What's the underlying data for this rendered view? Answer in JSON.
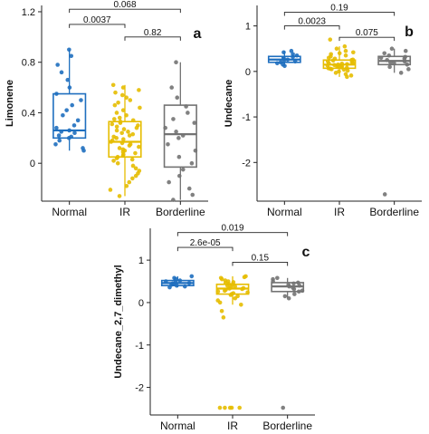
{
  "chart_data": [
    {
      "type": "box",
      "panel": "a",
      "ylabel": "Limonene",
      "categories": [
        "Normal",
        "IR",
        "Borderline"
      ],
      "yticks": [
        0.0,
        0.4,
        0.8,
        1.2
      ],
      "ylim": [
        -0.3,
        1.25
      ],
      "colors": [
        "#1f6fbf",
        "#e6bd00",
        "#737373"
      ],
      "boxes": [
        {
          "name": "Normal",
          "q1": 0.2,
          "median": 0.26,
          "q3": 0.55,
          "whisker_low": 0.1,
          "whisker_high": 0.9
        },
        {
          "name": "IR",
          "q1": 0.05,
          "median": 0.17,
          "q3": 0.33,
          "whisker_low": -0.26,
          "whisker_high": 0.62
        },
        {
          "name": "Borderline",
          "q1": -0.03,
          "median": 0.23,
          "q3": 0.46,
          "whisker_low": -0.29,
          "whisker_high": 0.8
        }
      ],
      "points": [
        [
          0.9,
          0.85,
          0.78,
          0.72,
          0.66,
          0.6,
          0.55,
          0.5,
          0.46,
          0.42,
          0.38,
          0.34,
          0.3,
          0.28,
          0.26,
          0.25,
          0.24,
          0.22,
          0.21,
          0.2,
          0.18,
          0.15,
          0.12,
          0.1
        ],
        [
          0.62,
          0.6,
          0.58,
          0.56,
          0.54,
          0.52,
          0.5,
          0.48,
          0.46,
          0.44,
          0.42,
          0.4,
          0.38,
          0.36,
          0.35,
          0.34,
          0.33,
          0.32,
          0.31,
          0.3,
          0.29,
          0.28,
          0.27,
          0.26,
          0.25,
          0.24,
          0.23,
          0.22,
          0.21,
          0.2,
          0.19,
          0.18,
          0.17,
          0.16,
          0.15,
          0.14,
          0.13,
          0.12,
          0.11,
          0.1,
          0.09,
          0.08,
          0.07,
          0.06,
          0.05,
          0.04,
          0.03,
          0.02,
          0.0,
          -0.02,
          -0.04,
          -0.06,
          -0.08,
          -0.1,
          -0.12,
          -0.15,
          -0.18,
          -0.21,
          -0.26
        ],
        [
          0.8,
          0.6,
          0.52,
          0.45,
          0.4,
          0.35,
          0.32,
          0.28,
          0.25,
          0.22,
          0.2,
          0.15,
          0.1,
          0.05,
          0.0,
          -0.05,
          -0.1,
          -0.15,
          -0.2,
          -0.25,
          -0.29
        ]
      ],
      "comparisons": [
        {
          "from": "Normal",
          "to": "Borderline",
          "p": "0.068",
          "y": 1.22
        },
        {
          "from": "Normal",
          "to": "IR",
          "p": "0.0037",
          "y": 1.1
        },
        {
          "from": "IR",
          "to": "Borderline",
          "p": "0.82",
          "y": 1.0
        }
      ]
    },
    {
      "type": "box",
      "panel": "b",
      "ylabel": "Undecane",
      "categories": [
        "Normal",
        "IR",
        "Borderline"
      ],
      "yticks": [
        -2,
        -1,
        0,
        1
      ],
      "ylim": [
        -2.85,
        1.45
      ],
      "colors": [
        "#1f6fbf",
        "#e6bd00",
        "#737373"
      ],
      "boxes": [
        {
          "name": "Normal",
          "q1": 0.2,
          "median": 0.26,
          "q3": 0.33,
          "whisker_low": 0.12,
          "whisker_high": 0.45
        },
        {
          "name": "IR",
          "q1": 0.07,
          "median": 0.15,
          "q3": 0.25,
          "whisker_low": -0.12,
          "whisker_high": 0.55
        },
        {
          "name": "Borderline",
          "q1": 0.15,
          "median": 0.23,
          "q3": 0.33,
          "whisker_low": -0.03,
          "whisker_high": 0.5
        }
      ],
      "points": [
        [
          0.45,
          0.42,
          0.38,
          0.35,
          0.32,
          0.3,
          0.28,
          0.26,
          0.25,
          0.22,
          0.2,
          0.18,
          0.15,
          0.12
        ],
        [
          0.7,
          0.55,
          0.5,
          0.45,
          0.42,
          0.4,
          0.38,
          0.35,
          0.33,
          0.3,
          0.28,
          0.26,
          0.25,
          0.24,
          0.22,
          0.2,
          0.19,
          0.18,
          0.17,
          0.16,
          0.15,
          0.14,
          0.13,
          0.12,
          0.11,
          0.1,
          0.09,
          0.08,
          0.07,
          0.06,
          0.05,
          0.04,
          0.02,
          0.0,
          -0.03,
          -0.06,
          -0.09,
          -0.12
        ],
        [
          0.5,
          0.45,
          0.4,
          0.35,
          0.32,
          0.3,
          0.28,
          0.25,
          0.22,
          0.2,
          0.18,
          0.15,
          0.1,
          0.05,
          -0.03,
          -2.7
        ]
      ],
      "comparisons": [
        {
          "from": "Normal",
          "to": "Borderline",
          "p": "0.19",
          "y": 1.3
        },
        {
          "from": "Normal",
          "to": "IR",
          "p": "0.0023",
          "y": 1.0
        },
        {
          "from": "IR",
          "to": "Borderline",
          "p": "0.075",
          "y": 0.75
        }
      ]
    },
    {
      "type": "box",
      "panel": "c",
      "ylabel": "Undecane_2,7_dimethyl",
      "categories": [
        "Normal",
        "IR",
        "Borderline"
      ],
      "yticks": [
        -2,
        -1,
        0,
        1
      ],
      "ylim": [
        -2.65,
        1.75
      ],
      "colors": [
        "#1f6fbf",
        "#e6bd00",
        "#737373"
      ],
      "boxes": [
        {
          "name": "Normal",
          "q1": 0.4,
          "median": 0.46,
          "q3": 0.52,
          "whisker_low": 0.36,
          "whisker_high": 0.62
        },
        {
          "name": "IR",
          "q1": 0.2,
          "median": 0.33,
          "q3": 0.43,
          "whisker_low": -0.05,
          "whisker_high": 0.62
        },
        {
          "name": "Borderline",
          "q1": 0.26,
          "median": 0.38,
          "q3": 0.47,
          "whisker_low": 0.1,
          "whisker_high": 0.58
        }
      ],
      "points": [
        [
          0.62,
          0.58,
          0.55,
          0.52,
          0.5,
          0.48,
          0.46,
          0.45,
          0.44,
          0.42,
          0.4,
          0.38,
          0.36
        ],
        [
          0.62,
          0.6,
          0.58,
          0.55,
          0.52,
          0.5,
          0.48,
          0.46,
          0.44,
          0.42,
          0.4,
          0.38,
          0.36,
          0.34,
          0.33,
          0.32,
          0.3,
          0.28,
          0.26,
          0.24,
          0.22,
          0.2,
          0.18,
          0.15,
          0.1,
          0.05,
          0.0,
          -0.05,
          -0.2,
          -0.35,
          -2.48,
          -2.48,
          -2.48,
          -2.48,
          -2.48
        ],
        [
          0.58,
          0.55,
          0.5,
          0.47,
          0.45,
          0.42,
          0.4,
          0.38,
          0.35,
          0.32,
          0.28,
          0.26,
          0.2,
          0.15,
          0.1,
          -2.48
        ]
      ],
      "comparisons": [
        {
          "from": "Normal",
          "to": "Borderline",
          "p": "0.019",
          "y": 1.65
        },
        {
          "from": "Normal",
          "to": "IR",
          "p": "2.6e-05",
          "y": 1.3
        },
        {
          "from": "IR",
          "to": "Borderline",
          "p": "0.15",
          "y": 0.95
        }
      ]
    }
  ]
}
